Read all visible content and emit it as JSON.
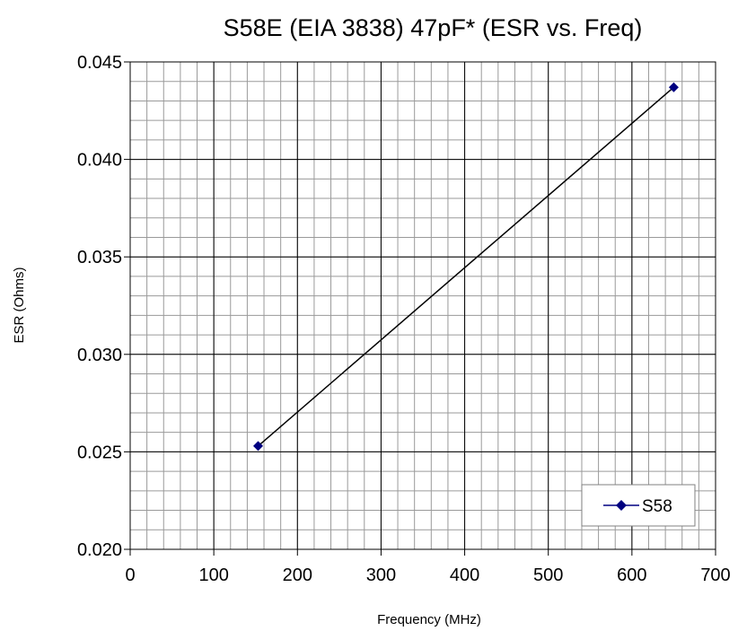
{
  "chart_data": {
    "type": "line",
    "title": "S58E (EIA 3838)  47pF* (ESR vs. Freq)",
    "xlabel": "Frequency (MHz)",
    "ylabel": "ESR (Ohms)",
    "xlim": [
      0,
      700
    ],
    "ylim": [
      0.02,
      0.045
    ],
    "x_ticks": [
      0,
      100,
      200,
      300,
      400,
      500,
      600,
      700
    ],
    "x_tick_labels": [
      "0",
      "100",
      "200",
      "300",
      "400",
      "500",
      "600",
      "700"
    ],
    "y_ticks": [
      0.02,
      0.025,
      0.03,
      0.035,
      0.04,
      0.045
    ],
    "y_tick_labels": [
      "0.020",
      "0.025",
      "0.030",
      "0.035",
      "0.040",
      "0.045"
    ],
    "x_minor_step": 20,
    "y_minor_step": 0.001,
    "grid": true,
    "legend_position": "bottom-right",
    "series": [
      {
        "name": "S58",
        "color": "#000080",
        "marker": "diamond",
        "points": [
          {
            "x": 153,
            "y": 0.0253
          },
          {
            "x": 650,
            "y": 0.0437
          }
        ]
      }
    ]
  }
}
